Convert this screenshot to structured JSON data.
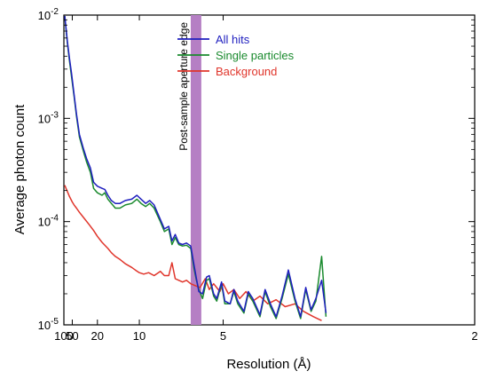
{
  "chart_data": {
    "type": "line",
    "xlabel": "Resolution (Å)",
    "ylabel": "Average photon count",
    "x_scale": "reciprocal",
    "y_scale": "log",
    "xlim": [
      100,
      2
    ],
    "ylim": [
      1e-05,
      0.01
    ],
    "x_ticks": [
      100,
      50,
      20,
      10,
      5,
      2
    ],
    "y_ticks": [
      {
        "value": 1e-05,
        "exp": "-5"
      },
      {
        "value": 0.0001,
        "exp": "-4"
      },
      {
        "value": 0.001,
        "exp": "-3"
      },
      {
        "value": 0.01,
        "exp": "-2"
      }
    ],
    "y_tick_base": "10",
    "legend_position": "top-left",
    "annotation": {
      "text": "Post-sample aperture edge",
      "x_range": [
        6.2,
        5.75
      ],
      "color": "#b57fc4"
    },
    "series": [
      {
        "name": "All hits",
        "color": "#1f1fbf",
        "points": [
          [
            90,
            0.0098
          ],
          [
            80,
            0.0075
          ],
          [
            70,
            0.0055
          ],
          [
            60,
            0.0038
          ],
          [
            52,
            0.0027
          ],
          [
            45,
            0.0017
          ],
          [
            40,
            0.0011
          ],
          [
            35,
            0.0007
          ],
          [
            30,
            0.00051
          ],
          [
            27,
            0.00041
          ],
          [
            24,
            0.00033
          ],
          [
            22,
            0.00024
          ],
          [
            20,
            0.00022
          ],
          [
            18,
            0.00021
          ],
          [
            17,
            0.000205
          ],
          [
            16,
            0.00018
          ],
          [
            15,
            0.00016
          ],
          [
            14,
            0.00015
          ],
          [
            13,
            0.00015
          ],
          [
            12,
            0.00016
          ],
          [
            11,
            0.000165
          ],
          [
            10.3,
            0.00018
          ],
          [
            9.8,
            0.000165
          ],
          [
            9.3,
            0.00015
          ],
          [
            8.9,
            0.00016
          ],
          [
            8.5,
            0.000145
          ],
          [
            8,
            0.000105
          ],
          [
            7.7,
            8.5e-05
          ],
          [
            7.4,
            9e-05
          ],
          [
            7.2,
            6.5e-05
          ],
          [
            7,
            7.5e-05
          ],
          [
            6.8,
            6.2e-05
          ],
          [
            6.6,
            6e-05
          ],
          [
            6.4,
            6.2e-05
          ],
          [
            6.2,
            5.8e-05
          ],
          [
            6.05,
            3.8e-05
          ],
          [
            5.95,
            2.8e-05
          ],
          [
            5.85,
            2.1e-05
          ],
          [
            5.7,
            2e-05
          ],
          [
            5.55,
            2.9e-05
          ],
          [
            5.45,
            3e-05
          ],
          [
            5.3,
            2e-05
          ],
          [
            5.2,
            1.8e-05
          ],
          [
            5.05,
            2.6e-05
          ],
          [
            4.95,
            1.7e-05
          ],
          [
            4.8,
            1.6e-05
          ],
          [
            4.7,
            2.2e-05
          ],
          [
            4.6,
            1.7e-05
          ],
          [
            4.45,
            1.35e-05
          ],
          [
            4.35,
            2.1e-05
          ],
          [
            4.25,
            1.8e-05
          ],
          [
            4.1,
            1.25e-05
          ],
          [
            4.0,
            2.2e-05
          ],
          [
            3.9,
            1.6e-05
          ],
          [
            3.8,
            1.2e-05
          ],
          [
            3.7,
            1.9e-05
          ],
          [
            3.6,
            3.4e-05
          ],
          [
            3.5,
            1.8e-05
          ],
          [
            3.42,
            1.2e-05
          ],
          [
            3.35,
            2.3e-05
          ],
          [
            3.28,
            1.4e-05
          ],
          [
            3.22,
            1.8e-05
          ],
          [
            3.15,
            2.7e-05
          ],
          [
            3.1,
            1.3e-05
          ]
        ]
      },
      {
        "name": "Single particles",
        "color": "#1a8a2e",
        "points": [
          [
            90,
            0.0098
          ],
          [
            80,
            0.0073
          ],
          [
            70,
            0.0053
          ],
          [
            60,
            0.0036
          ],
          [
            52,
            0.0025
          ],
          [
            45,
            0.00163
          ],
          [
            40,
            0.00105
          ],
          [
            35,
            0.00066
          ],
          [
            30,
            0.00048
          ],
          [
            27,
            0.00038
          ],
          [
            24,
            0.0003
          ],
          [
            22,
            0.00021
          ],
          [
            20,
            0.00019
          ],
          [
            18,
            0.00018
          ],
          [
            17,
            0.00019
          ],
          [
            16,
            0.000165
          ],
          [
            15,
            0.00015
          ],
          [
            14,
            0.000135
          ],
          [
            13,
            0.000135
          ],
          [
            12,
            0.000145
          ],
          [
            11,
            0.00015
          ],
          [
            10.3,
            0.000165
          ],
          [
            9.8,
            0.00015
          ],
          [
            9.3,
            0.00014
          ],
          [
            8.9,
            0.00015
          ],
          [
            8.5,
            0.000135
          ],
          [
            8,
            0.0001
          ],
          [
            7.7,
            8e-05
          ],
          [
            7.4,
            8.5e-05
          ],
          [
            7.2,
            6e-05
          ],
          [
            7,
            7e-05
          ],
          [
            6.8,
            6e-05
          ],
          [
            6.6,
            5.8e-05
          ],
          [
            6.4,
            5.9e-05
          ],
          [
            6.2,
            5.5e-05
          ],
          [
            6.05,
            3.5e-05
          ],
          [
            5.95,
            2.7e-05
          ],
          [
            5.85,
            2.2e-05
          ],
          [
            5.7,
            1.8e-05
          ],
          [
            5.55,
            2.7e-05
          ],
          [
            5.45,
            2.8e-05
          ],
          [
            5.3,
            1.9e-05
          ],
          [
            5.2,
            1.7e-05
          ],
          [
            5.05,
            2.5e-05
          ],
          [
            4.95,
            1.6e-05
          ],
          [
            4.8,
            1.6e-05
          ],
          [
            4.7,
            2.1e-05
          ],
          [
            4.6,
            1.6e-05
          ],
          [
            4.45,
            1.3e-05
          ],
          [
            4.35,
            2e-05
          ],
          [
            4.25,
            1.7e-05
          ],
          [
            4.1,
            1.2e-05
          ],
          [
            4.0,
            2.1e-05
          ],
          [
            3.9,
            1.5e-05
          ],
          [
            3.8,
            1.15e-05
          ],
          [
            3.7,
            1.8e-05
          ],
          [
            3.6,
            3.1e-05
          ],
          [
            3.5,
            1.7e-05
          ],
          [
            3.42,
            1.15e-05
          ],
          [
            3.35,
            2.2e-05
          ],
          [
            3.28,
            1.35e-05
          ],
          [
            3.22,
            1.7e-05
          ],
          [
            3.15,
            4.6e-05
          ],
          [
            3.1,
            1.2e-05
          ]
        ]
      },
      {
        "name": "Background",
        "color": "#e0352b",
        "points": [
          [
            90,
            0.000225
          ],
          [
            80,
            0.00021
          ],
          [
            70,
            0.000195
          ],
          [
            60,
            0.000175
          ],
          [
            50,
            0.000155
          ],
          [
            45,
            0.000145
          ],
          [
            40,
            0.000135
          ],
          [
            35,
            0.000123
          ],
          [
            30,
            0.00011
          ],
          [
            25,
            9.4e-05
          ],
          [
            22,
            8.2e-05
          ],
          [
            20,
            7.2e-05
          ],
          [
            18,
            6.3e-05
          ],
          [
            16,
            5.5e-05
          ],
          [
            15,
            5e-05
          ],
          [
            14,
            4.6e-05
          ],
          [
            13,
            4.3e-05
          ],
          [
            12,
            3.9e-05
          ],
          [
            11,
            3.6e-05
          ],
          [
            10.5,
            3.4e-05
          ],
          [
            10,
            3.2e-05
          ],
          [
            9.5,
            3.1e-05
          ],
          [
            9,
            3.2e-05
          ],
          [
            8.5,
            3e-05
          ],
          [
            8,
            3.3e-05
          ],
          [
            7.7,
            3e-05
          ],
          [
            7.4,
            3e-05
          ],
          [
            7.2,
            4e-05
          ],
          [
            7.0,
            2.8e-05
          ],
          [
            6.8,
            2.7e-05
          ],
          [
            6.6,
            2.6e-05
          ],
          [
            6.4,
            2.7e-05
          ],
          [
            6.2,
            2.5e-05
          ],
          [
            6.0,
            2.4e-05
          ],
          [
            5.8,
            2.3e-05
          ],
          [
            5.6,
            2.8e-05
          ],
          [
            5.45,
            2.2e-05
          ],
          [
            5.3,
            2.5e-05
          ],
          [
            5.1,
            2.1e-05
          ],
          [
            5.0,
            2.5e-05
          ],
          [
            4.85,
            2e-05
          ],
          [
            4.7,
            2.2e-05
          ],
          [
            4.55,
            1.8e-05
          ],
          [
            4.4,
            2.1e-05
          ],
          [
            4.25,
            1.7e-05
          ],
          [
            4.1,
            1.9e-05
          ],
          [
            3.95,
            1.6e-05
          ],
          [
            3.8,
            1.75e-05
          ],
          [
            3.65,
            1.5e-05
          ],
          [
            3.5,
            1.6e-05
          ],
          [
            3.38,
            1.35e-05
          ],
          [
            3.25,
            1.2e-05
          ],
          [
            3.15,
            1.1e-05
          ]
        ]
      }
    ]
  }
}
